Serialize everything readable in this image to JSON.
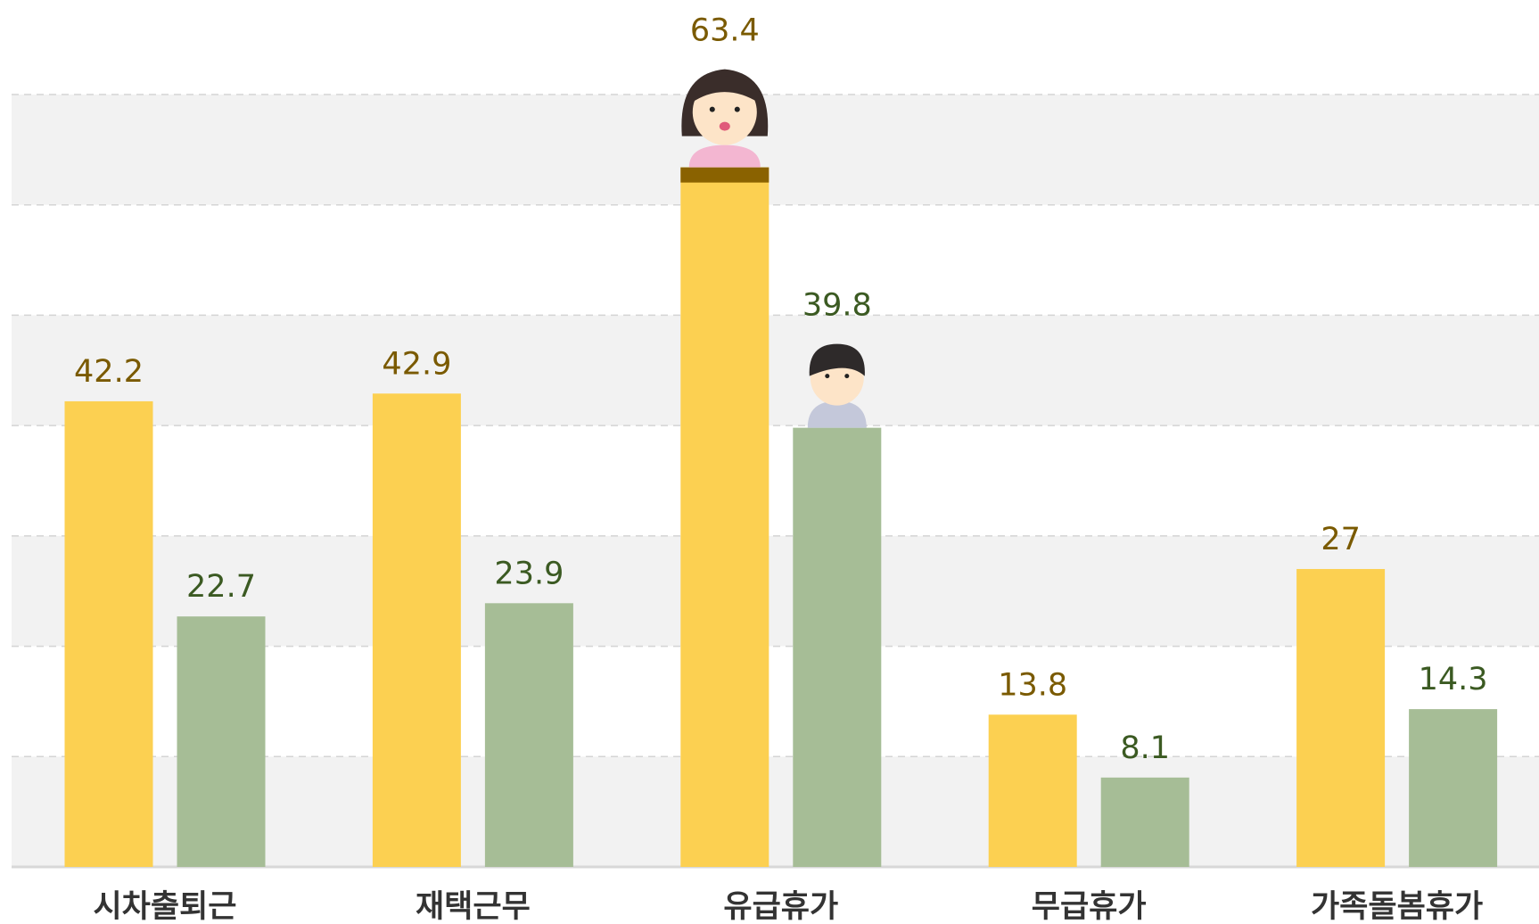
{
  "chart_data": {
    "type": "bar",
    "categories": [
      "시차출퇴근",
      "재택근무",
      "유급휴가",
      "무급휴가",
      "가족돌봄휴가"
    ],
    "series": [
      {
        "color": "#fcd051",
        "label_color": "#7a5a00",
        "values": [
          42.2,
          42.9,
          63.4,
          13.8,
          27
        ]
      },
      {
        "color": "#a6bd96",
        "label_color": "#3b5a22",
        "values": [
          22.7,
          23.9,
          39.8,
          8.1,
          14.3
        ]
      }
    ],
    "ylim": [
      0,
      70
    ],
    "yticks": [
      0,
      10,
      20,
      30,
      40,
      50,
      60,
      70
    ],
    "grid": true
  }
}
